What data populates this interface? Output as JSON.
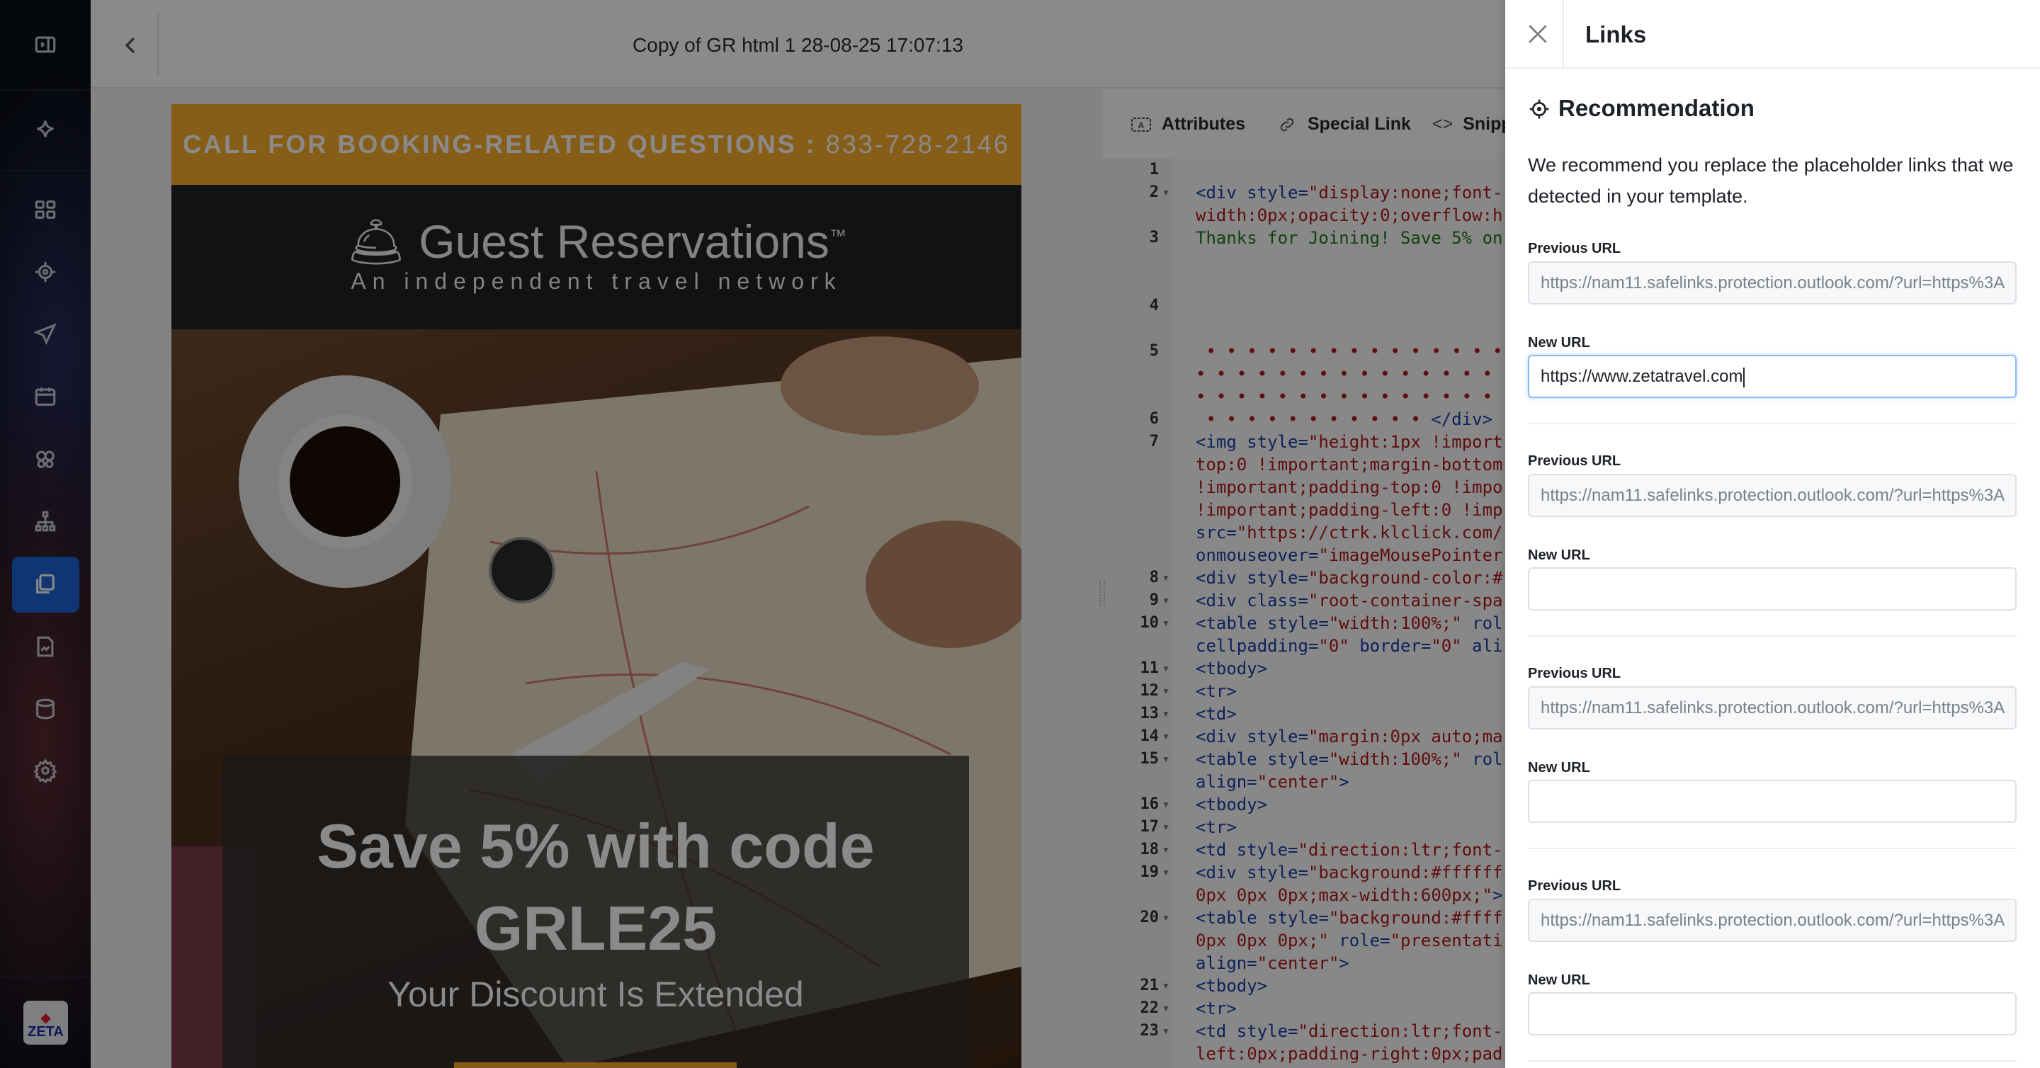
{
  "sidebar": {
    "icons": [
      "collapse-panel",
      "sparkle",
      "dashboard-grid",
      "target",
      "send",
      "calendar",
      "audiences",
      "hierarchy",
      "templates",
      "reports",
      "database",
      "settings"
    ],
    "active": "templates",
    "active_color": "#1f63d6",
    "logo_text": "ZETA"
  },
  "topbar": {
    "title": "Copy of GR html 1 28-08-25 17:07:13"
  },
  "email": {
    "call_label": "CALL FOR BOOKING-RELATED QUESTIONS :",
    "phone": "833-728-2146",
    "brand": "Guest Reservations",
    "trademark": "™",
    "tagline": "An independent travel network",
    "headline": "Save 5% with code GRLE25",
    "subhead": "Your Discount Is Extended",
    "gold_color": "#faae2b"
  },
  "editor": {
    "tabs": [
      {
        "label": "Attributes",
        "icon": "attributes"
      },
      {
        "label": "Special Link",
        "icon": "link"
      },
      {
        "label": "Snippe",
        "icon": "code"
      }
    ],
    "rows": [
      {
        "n": "1",
        "f": false,
        "seg": []
      },
      {
        "n": "2",
        "f": true,
        "seg": [
          [
            "k",
            "<div style="
          ],
          [
            "s",
            "\"display:none;font-"
          ]
        ]
      },
      {
        "n": "",
        "f": false,
        "seg": [
          [
            "s",
            "width:0px;opacity:0;overflow:h"
          ]
        ]
      },
      {
        "n": "3",
        "f": false,
        "seg": [
          [
            "g",
            "Thanks for Joining! Save 5% on"
          ]
        ]
      },
      {
        "n": "",
        "f": false,
        "seg": []
      },
      {
        "n": "",
        "f": false,
        "seg": []
      },
      {
        "n": "4",
        "f": false,
        "seg": []
      },
      {
        "n": "",
        "f": false,
        "seg": []
      },
      {
        "n": "5",
        "f": false,
        "seg": [
          [
            "s",
            " • • • • • • • • • • • • • • • •"
          ]
        ]
      },
      {
        "n": "",
        "f": false,
        "seg": [
          [
            "s",
            "• • • • • • • • • • • • • • • •"
          ]
        ]
      },
      {
        "n": "",
        "f": false,
        "seg": [
          [
            "s",
            "• • • • • • • • • • • • • • • •"
          ]
        ]
      },
      {
        "n": "6",
        "f": false,
        "seg": [
          [
            "s",
            " • • • • • • • • • • •"
          ],
          [
            "k",
            " </div>"
          ]
        ]
      },
      {
        "n": "7",
        "f": false,
        "seg": [
          [
            "k",
            "<img style="
          ],
          [
            "s",
            "\"height:1px !import"
          ]
        ]
      },
      {
        "n": "",
        "f": false,
        "seg": [
          [
            "s",
            "top:0 !important;margin-bottom"
          ]
        ]
      },
      {
        "n": "",
        "f": false,
        "seg": [
          [
            "s",
            "!important;padding-top:0 !impo"
          ]
        ]
      },
      {
        "n": "",
        "f": false,
        "seg": [
          [
            "s",
            "!important;padding-left:0 !imp"
          ]
        ]
      },
      {
        "n": "",
        "f": false,
        "seg": [
          [
            "k",
            "src="
          ],
          [
            "s",
            "\"https://ctrk.klclick.com/"
          ]
        ]
      },
      {
        "n": "",
        "f": false,
        "seg": [
          [
            "k",
            "onmouseover="
          ],
          [
            "s",
            "\"imageMousePointer"
          ]
        ]
      },
      {
        "n": "8",
        "f": true,
        "seg": [
          [
            "k",
            "<div style="
          ],
          [
            "s",
            "\"background-color:#"
          ]
        ]
      },
      {
        "n": "9",
        "f": true,
        "seg": [
          [
            "k",
            "<div class="
          ],
          [
            "s",
            "\"root-container-spa"
          ]
        ]
      },
      {
        "n": "10",
        "f": true,
        "seg": [
          [
            "k",
            "<table style="
          ],
          [
            "s",
            "\"width:100%;\""
          ],
          [
            "k",
            " rol"
          ]
        ]
      },
      {
        "n": "",
        "f": false,
        "seg": [
          [
            "k",
            "cellpadding="
          ],
          [
            "s",
            "\"0\""
          ],
          [
            "k",
            " border="
          ],
          [
            "s",
            "\"0\""
          ],
          [
            "k",
            " ali"
          ]
        ]
      },
      {
        "n": "11",
        "f": true,
        "seg": [
          [
            "k",
            "<tbody>"
          ]
        ]
      },
      {
        "n": "12",
        "f": true,
        "seg": [
          [
            "k",
            "<tr>"
          ]
        ]
      },
      {
        "n": "13",
        "f": true,
        "seg": [
          [
            "k",
            "<td>"
          ]
        ]
      },
      {
        "n": "14",
        "f": true,
        "seg": [
          [
            "k",
            "<div style="
          ],
          [
            "s",
            "\"margin:0px auto;ma"
          ]
        ]
      },
      {
        "n": "15",
        "f": true,
        "seg": [
          [
            "k",
            "<table style="
          ],
          [
            "s",
            "\"width:100%;\""
          ],
          [
            "k",
            " rol"
          ]
        ]
      },
      {
        "n": "",
        "f": false,
        "seg": [
          [
            "k",
            "align="
          ],
          [
            "s",
            "\"center\""
          ],
          [
            "k",
            ">"
          ]
        ]
      },
      {
        "n": "16",
        "f": true,
        "seg": [
          [
            "k",
            "<tbody>"
          ]
        ]
      },
      {
        "n": "17",
        "f": true,
        "seg": [
          [
            "k",
            "<tr>"
          ]
        ]
      },
      {
        "n": "18",
        "f": true,
        "seg": [
          [
            "k",
            "<td style="
          ],
          [
            "s",
            "\"direction:ltr;font-"
          ]
        ]
      },
      {
        "n": "19",
        "f": true,
        "seg": [
          [
            "k",
            "<div style="
          ],
          [
            "s",
            "\"background:#ffffff"
          ]
        ]
      },
      {
        "n": "",
        "f": false,
        "seg": [
          [
            "s",
            "0px 0px 0px;max-width:600px;\""
          ],
          [
            "k",
            ">"
          ]
        ]
      },
      {
        "n": "20",
        "f": true,
        "seg": [
          [
            "k",
            "<table style="
          ],
          [
            "s",
            "\"background:#ffff"
          ]
        ]
      },
      {
        "n": "",
        "f": false,
        "seg": [
          [
            "s",
            "0px 0px 0px;\""
          ],
          [
            "k",
            " role="
          ],
          [
            "s",
            "\"presentati"
          ]
        ]
      },
      {
        "n": "",
        "f": false,
        "seg": [
          [
            "k",
            "align="
          ],
          [
            "s",
            "\"center\""
          ],
          [
            "k",
            ">"
          ]
        ]
      },
      {
        "n": "21",
        "f": true,
        "seg": [
          [
            "k",
            "<tbody>"
          ]
        ]
      },
      {
        "n": "22",
        "f": true,
        "seg": [
          [
            "k",
            "<tr>"
          ]
        ]
      },
      {
        "n": "23",
        "f": true,
        "seg": [
          [
            "k",
            "<td style="
          ],
          [
            "s",
            "\"direction:ltr;font-"
          ]
        ]
      },
      {
        "n": "",
        "f": false,
        "seg": [
          [
            "s",
            "left:0px;padding-right:0px;pad"
          ]
        ]
      }
    ]
  },
  "panel": {
    "title": "Links",
    "section_title": "Recommendation",
    "description": "We recommend you replace the placeholder links that we detected in your template.",
    "previous_label": "Previous URL",
    "new_label": "New URL",
    "groups": [
      {
        "previous": "https://nam11.safelinks.protection.outlook.com/?url=https%3A",
        "new": "https://www.zetatravel.com",
        "focused": true
      },
      {
        "previous": "https://nam11.safelinks.protection.outlook.com/?url=https%3A",
        "new": "",
        "focused": false
      },
      {
        "previous": "https://nam11.safelinks.protection.outlook.com/?url=https%3A",
        "new": "",
        "focused": false
      },
      {
        "previous": "https://nam11.safelinks.protection.outlook.com/?url=https%3A",
        "new": "",
        "focused": false
      }
    ]
  }
}
